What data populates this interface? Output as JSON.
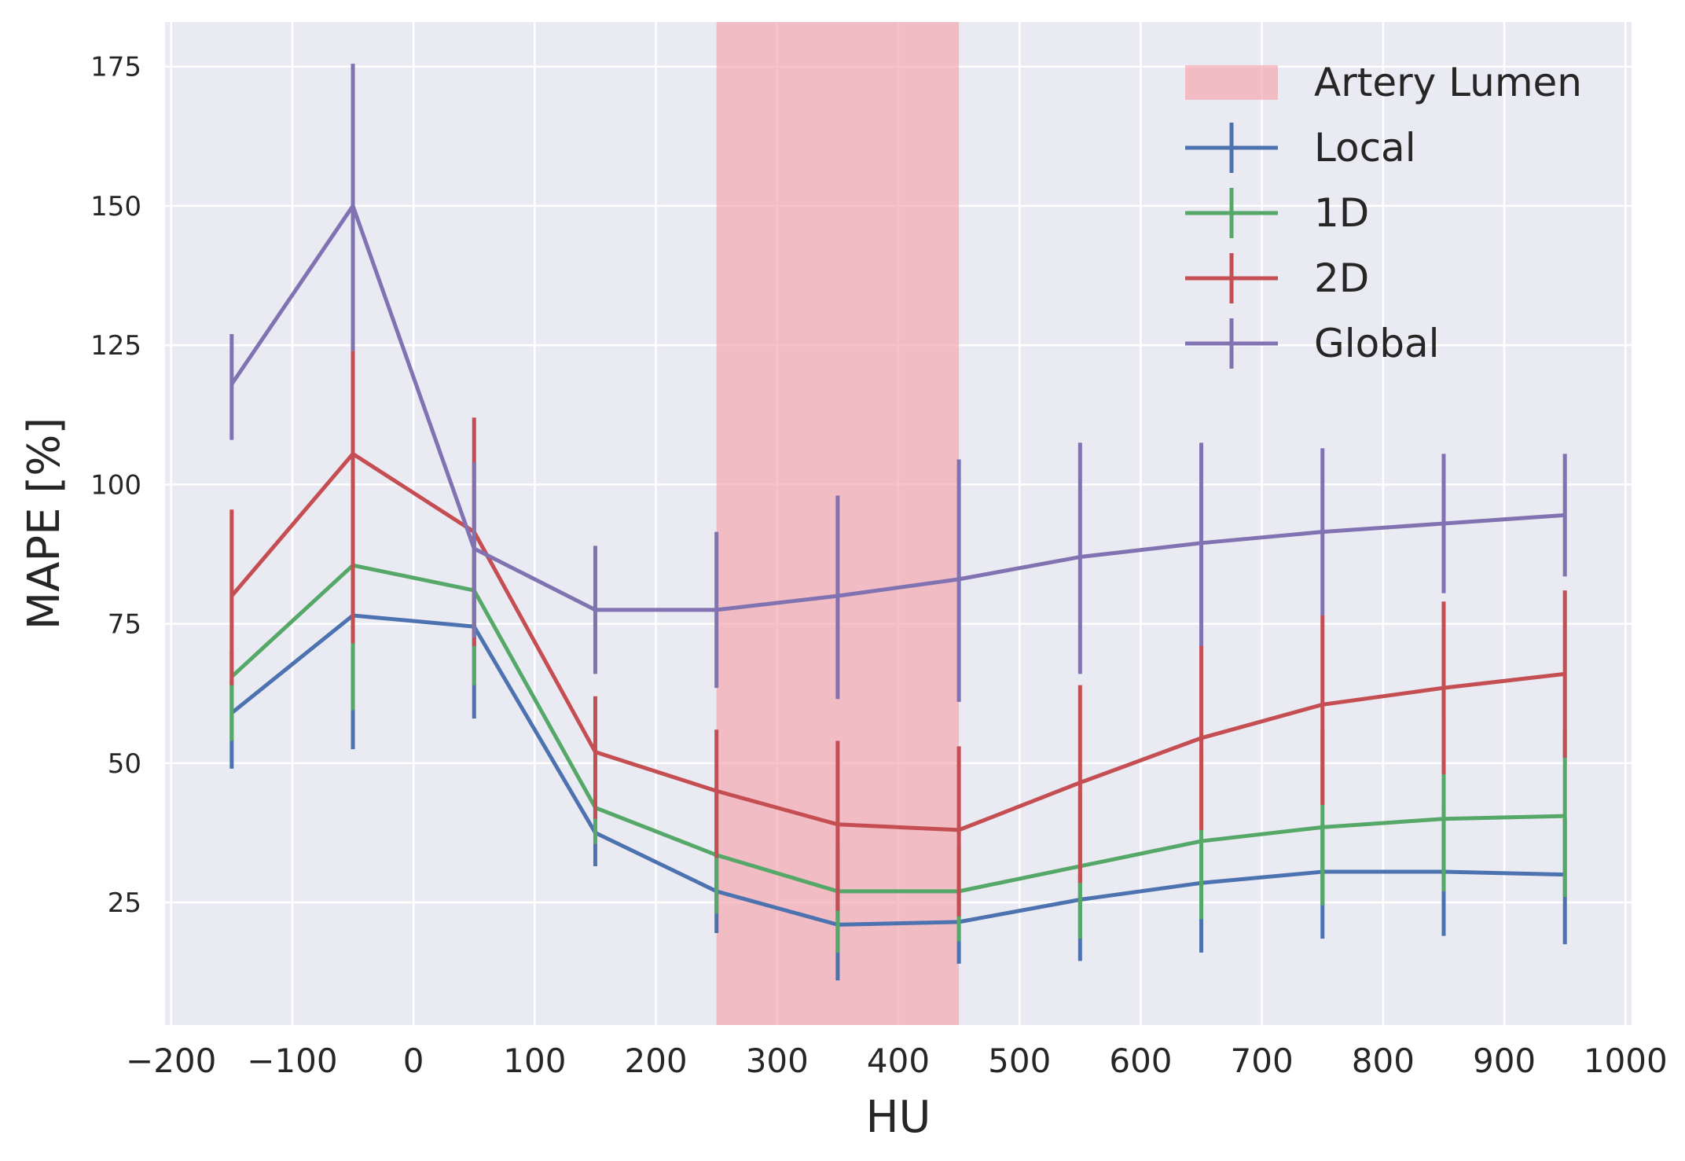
{
  "chart_data": {
    "type": "line",
    "xlabel": "HU",
    "ylabel": "MAPE [%]",
    "xlim": [
      -205,
      1005
    ],
    "ylim": [
      3,
      183
    ],
    "xticks": [
      -200,
      -100,
      0,
      100,
      200,
      300,
      400,
      500,
      600,
      700,
      800,
      900,
      1000
    ],
    "xtick_labels": [
      "−200",
      "−100",
      "0",
      "100",
      "200",
      "300",
      "400",
      "500",
      "600",
      "700",
      "800",
      "900",
      "1000"
    ],
    "yticks": [
      25,
      50,
      75,
      100,
      125,
      150,
      175
    ],
    "ytick_labels": [
      "25",
      "50",
      "75",
      "100",
      "125",
      "150",
      "175"
    ],
    "grid": true,
    "legend_position": "top-right",
    "x": [
      -150,
      -50,
      50,
      150,
      250,
      350,
      450,
      550,
      650,
      750,
      850,
      950
    ],
    "shaded_region": {
      "name": "Artery Lumen",
      "x_range": [
        250,
        450
      ],
      "color": "#f4a3ab"
    },
    "series": [
      {
        "name": "Local",
        "color": "#4c72b0",
        "values": [
          59,
          76.5,
          74.5,
          37.5,
          27,
          21,
          21.5,
          25.5,
          28.5,
          30.5,
          30.5,
          30
        ],
        "err_low": [
          49,
          52.5,
          58,
          31.5,
          19.5,
          11,
          14,
          14.5,
          16,
          18.5,
          19,
          17.5
        ],
        "err_high": [
          65,
          85,
          86,
          43,
          34,
          27,
          27.5,
          30,
          35,
          39,
          42,
          40
        ]
      },
      {
        "name": "1D",
        "color": "#55a868",
        "values": [
          65.5,
          85.5,
          81,
          42,
          33.5,
          27,
          27,
          31.5,
          36,
          38.5,
          40,
          40.5
        ],
        "err_low": [
          54,
          59.5,
          64,
          35.5,
          23,
          16,
          18,
          18.5,
          22,
          24.5,
          27,
          26
        ],
        "err_high": [
          70,
          99,
          91,
          51,
          45,
          35,
          35,
          45,
          52,
          56,
          58,
          56
        ]
      },
      {
        "name": "2D",
        "color": "#c44e52",
        "values": [
          80,
          105.5,
          91.5,
          52,
          45,
          39,
          38,
          46.5,
          54.5,
          60.5,
          63.5,
          66
        ],
        "err_low": [
          64,
          71.5,
          71,
          40,
          33,
          23.5,
          22.5,
          28.5,
          38,
          42.5,
          48,
          51
        ],
        "err_high": [
          95.5,
          124,
          112,
          62,
          56,
          54,
          53,
          64,
          71.5,
          76.5,
          79,
          81
        ]
      },
      {
        "name": "Global",
        "color": "#8172b2",
        "values": [
          118,
          150,
          88.5,
          77.5,
          77.5,
          80,
          83,
          87,
          89.5,
          91.5,
          93,
          94.5
        ],
        "err_low": [
          108,
          124,
          72.5,
          66,
          63.5,
          61.5,
          61,
          66,
          71,
          76.5,
          80.5,
          83.5
        ],
        "err_high": [
          127,
          175.5,
          104,
          89,
          91.5,
          98,
          104.5,
          107.5,
          107.5,
          106.5,
          105.5,
          105.5
        ]
      }
    ]
  }
}
